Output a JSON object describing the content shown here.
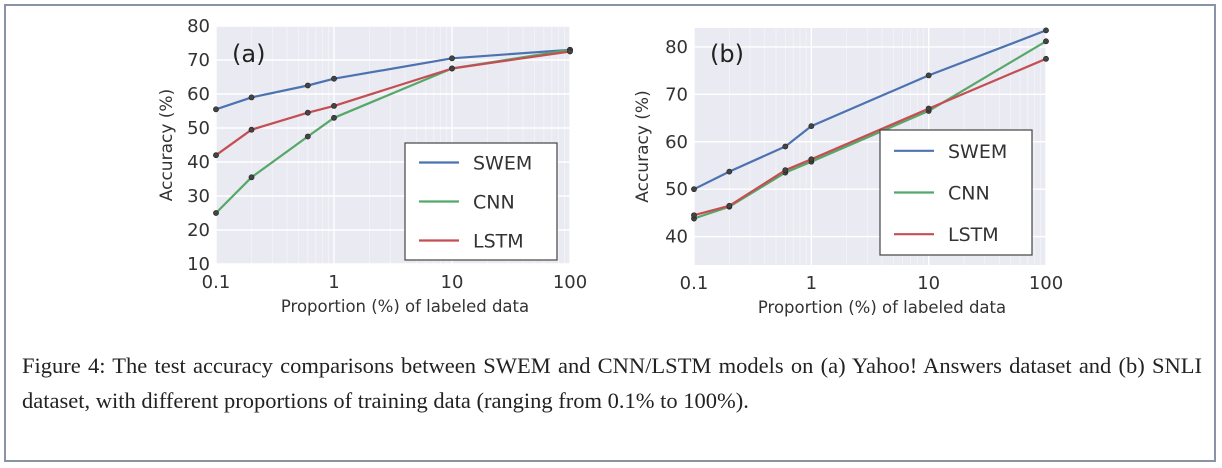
{
  "chart_data": [
    {
      "type": "line",
      "panel_label": "(a)",
      "xscale": "log",
      "xlim": [
        0.1,
        100
      ],
      "ylim": [
        10,
        80
      ],
      "xticks": [
        "0.1",
        "1",
        "10",
        "100"
      ],
      "yticks": [
        "10",
        "20",
        "30",
        "40",
        "50",
        "60",
        "70",
        "80"
      ],
      "xlabel": "Proportion (%) of labeled data",
      "ylabel": "Accuracy (%)",
      "grid": true,
      "legend_position": "lower-right",
      "series": [
        {
          "name": "SWEM",
          "color": "#4c72b0",
          "x": [
            0.1,
            0.2,
            0.6,
            1,
            10,
            100
          ],
          "y": [
            55.5,
            59.0,
            62.5,
            64.5,
            70.5,
            73.0
          ]
        },
        {
          "name": "CNN",
          "color": "#55a868",
          "x": [
            0.1,
            0.2,
            0.6,
            1,
            10,
            100
          ],
          "y": [
            25.0,
            35.5,
            47.5,
            53.0,
            67.5,
            73.0
          ]
        },
        {
          "name": "LSTM",
          "color": "#c44e52",
          "x": [
            0.1,
            0.2,
            0.6,
            1,
            10,
            100
          ],
          "y": [
            42.0,
            49.5,
            54.5,
            56.5,
            67.5,
            72.5
          ]
        }
      ]
    },
    {
      "type": "line",
      "panel_label": "(b)",
      "xscale": "log",
      "xlim": [
        0.1,
        100
      ],
      "ylim": [
        34,
        84
      ],
      "xticks": [
        "0.1",
        "1",
        "10",
        "100"
      ],
      "yticks": [
        "40",
        "50",
        "60",
        "70",
        "80"
      ],
      "xlabel": "Proportion (%) of labeled data",
      "ylabel": "Accuracy (%)",
      "grid": true,
      "legend_position": "lower-right",
      "series": [
        {
          "name": "SWEM",
          "color": "#4c72b0",
          "x": [
            0.1,
            0.2,
            0.6,
            1,
            10,
            100
          ],
          "y": [
            50.0,
            53.7,
            59.0,
            63.3,
            74.0,
            83.5
          ]
        },
        {
          "name": "CNN",
          "color": "#55a868",
          "x": [
            0.1,
            0.2,
            0.6,
            1,
            10,
            100
          ],
          "y": [
            43.8,
            46.3,
            53.5,
            55.8,
            66.5,
            81.2
          ]
        },
        {
          "name": "LSTM",
          "color": "#c44e52",
          "x": [
            0.1,
            0.2,
            0.6,
            1,
            10,
            100
          ],
          "y": [
            44.5,
            46.5,
            54.0,
            56.3,
            67.0,
            77.5
          ]
        }
      ]
    }
  ],
  "caption": {
    "text": "Figure 4: The test accuracy comparisons between SWEM and CNN/LSTM models on (a) Yahoo! Answers dataset and (b) SNLI dataset, with different proportions of training data (ranging from 0.1% to 100%)."
  }
}
